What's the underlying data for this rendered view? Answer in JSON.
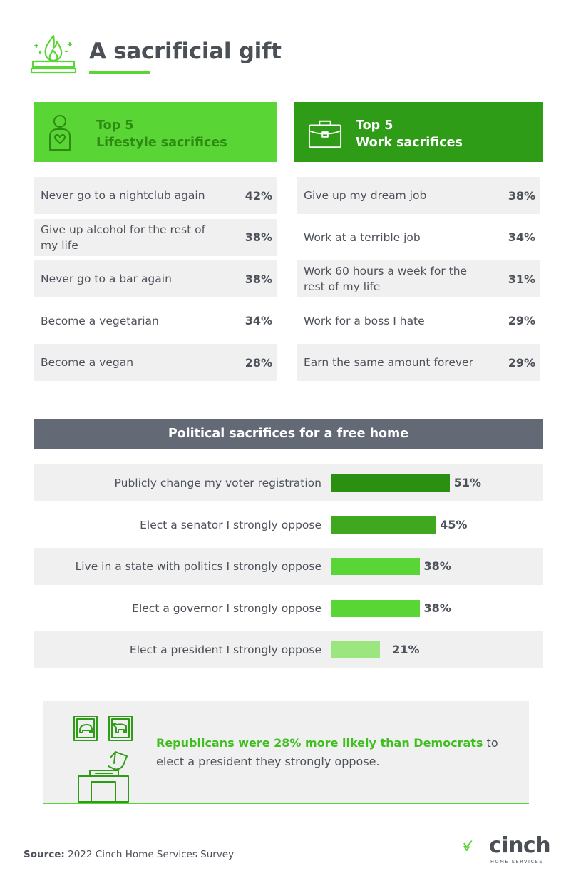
{
  "title": "A sacrificial gift",
  "colors": {
    "light_green": "#5ad536",
    "dark_green": "#2f9c17",
    "gray_header": "#646a75",
    "row_bg": "#f0f0f0",
    "bar_dark": "#2b8f12",
    "bar_mid": "#3fa81e",
    "bar_light": "#5ad536",
    "bar_pale": "#9be67f"
  },
  "icons": {
    "title": "fire-pit-icon",
    "lifestyle": "person-heart-icon",
    "work": "briefcase-icon",
    "callout": "ballot-box-icon"
  },
  "lifestyle": {
    "header_line1": "Top 5",
    "header_line2": "Lifestyle sacrifices",
    "items": [
      {
        "label": "Never go to a nightclub again",
        "pct": "42%"
      },
      {
        "label": "Give up alcohol for the rest of my life",
        "pct": "38%"
      },
      {
        "label": "Never go to a bar again",
        "pct": "38%"
      },
      {
        "label": "Become a vegetarian",
        "pct": "34%"
      },
      {
        "label": "Become a vegan",
        "pct": "28%"
      }
    ]
  },
  "work": {
    "header_line1": "Top 5",
    "header_line2": "Work sacrifices",
    "items": [
      {
        "label": "Give up my dream job",
        "pct": "38%"
      },
      {
        "label": "Work at a terrible job",
        "pct": "34%"
      },
      {
        "label": "Work 60 hours a week for the rest of my life",
        "pct": "31%"
      },
      {
        "label": "Work for a boss I hate",
        "pct": "29%"
      },
      {
        "label": "Earn the same amount forever",
        "pct": "29%"
      }
    ]
  },
  "chart_data": {
    "type": "bar",
    "orientation": "horizontal",
    "title": "Political sacrifices for a free home",
    "categories": [
      "Publicly change my voter registration",
      "Elect a senator I strongly oppose",
      "Live in a state with politics I strongly oppose",
      "Elect a governor I strongly oppose",
      "Elect a president I strongly oppose"
    ],
    "values": [
      51,
      45,
      38,
      38,
      21
    ],
    "value_labels": [
      "51%",
      "45%",
      "38%",
      "38%",
      "21%"
    ],
    "bar_colors": [
      "#2b8f12",
      "#3fa81e",
      "#5ad536",
      "#5ad536",
      "#9be67f"
    ],
    "xlim": [
      0,
      100
    ],
    "grid": false
  },
  "callout": {
    "highlight": "Republicans were 28% more likely than Democrats",
    "rest": " to elect a president they strongly oppose."
  },
  "source": {
    "label": "Source:",
    "text": " 2022 Cinch Home Services Survey"
  },
  "logo": {
    "word": "cinch",
    "sub": "HOME SERVICES"
  }
}
